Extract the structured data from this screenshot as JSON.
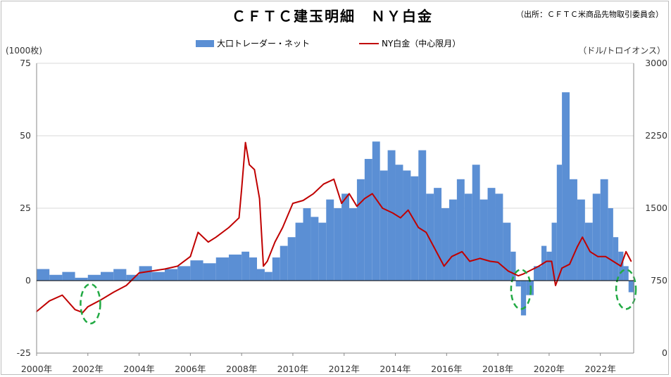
{
  "chart_data": {
    "type": "bar+line",
    "title": "ＣＦＴＣ建玉明細　ＮＹ白金",
    "source_note": "（出所：ＣＦＴＣ米商品先物取引委員会）",
    "left_axis_unit": "(1000枚)",
    "right_axis_unit": "（ドル/トロイオンス）",
    "legend_position": "top-center",
    "grid": true,
    "left_axis": {
      "ylim": [
        -25,
        75
      ],
      "ticks": [
        "75",
        "50",
        "25",
        "0",
        "-25"
      ]
    },
    "right_axis": {
      "ylim": [
        0,
        3000
      ],
      "ticks": [
        "3000",
        "2250",
        "1500",
        "750",
        "0"
      ]
    },
    "x_ticks": [
      "2000年",
      "2002年",
      "2004年",
      "2006年",
      "2008年",
      "2010年",
      "2012年",
      "2014年",
      "2016年",
      "2018年",
      "2020年",
      "2022年"
    ],
    "xlim": [
      2000,
      2023.3
    ],
    "series": [
      {
        "name": "大口トレーダー・ネット",
        "kind": "bar",
        "axis": "left",
        "color": "#5b8fd4",
        "x": [
          2000,
          2000.5,
          2001,
          2001.5,
          2002,
          2002.5,
          2003,
          2003.5,
          2004,
          2004.5,
          2005,
          2005.5,
          2006,
          2006.5,
          2007,
          2007.5,
          2008,
          2008.3,
          2008.6,
          2008.9,
          2009.2,
          2009.5,
          2009.8,
          2010.1,
          2010.4,
          2010.7,
          2011,
          2011.3,
          2011.6,
          2011.9,
          2012.2,
          2012.5,
          2012.8,
          2013.1,
          2013.4,
          2013.7,
          2014,
          2014.3,
          2014.6,
          2014.9,
          2015.2,
          2015.5,
          2015.8,
          2016.1,
          2016.4,
          2016.7,
          2017,
          2017.3,
          2017.6,
          2017.9,
          2018.2,
          2018.5,
          2018.7,
          2018.9,
          2019.1,
          2019.4,
          2019.7,
          2019.9,
          2020.1,
          2020.3,
          2020.5,
          2020.8,
          2021.1,
          2021.4,
          2021.7,
          2022,
          2022.3,
          2022.5,
          2022.7,
          2022.9,
          2023.1,
          2023.3
        ],
        "values": [
          4,
          2,
          3,
          1,
          2,
          3,
          4,
          2,
          5,
          3,
          4,
          5,
          7,
          6,
          8,
          9,
          10,
          8,
          4,
          3,
          8,
          12,
          15,
          20,
          25,
          22,
          20,
          28,
          25,
          30,
          25,
          35,
          42,
          48,
          38,
          45,
          40,
          38,
          36,
          45,
          30,
          32,
          25,
          28,
          35,
          30,
          40,
          28,
          32,
          30,
          20,
          10,
          -2,
          -12,
          -5,
          5,
          12,
          10,
          20,
          40,
          65,
          35,
          28,
          20,
          30,
          35,
          25,
          15,
          10,
          5,
          -4,
          -6
        ]
      },
      {
        "name": "NY白金（中心限月）",
        "kind": "line",
        "axis": "right",
        "color": "#c00000",
        "x": [
          2000,
          2000.5,
          2001,
          2001.5,
          2001.8,
          2002,
          2002.5,
          2003,
          2003.5,
          2004,
          2004.5,
          2005,
          2005.5,
          2006,
          2006.3,
          2006.7,
          2007,
          2007.5,
          2007.9,
          2008,
          2008.15,
          2008.3,
          2008.5,
          2008.7,
          2008.85,
          2009,
          2009.3,
          2009.6,
          2010,
          2010.4,
          2010.8,
          2011.2,
          2011.6,
          2011.9,
          2012.2,
          2012.5,
          2012.8,
          2013.1,
          2013.5,
          2013.9,
          2014.2,
          2014.5,
          2014.9,
          2015.2,
          2015.5,
          2015.9,
          2016.2,
          2016.6,
          2016.9,
          2017.3,
          2017.7,
          2018,
          2018.4,
          2018.8,
          2019,
          2019.3,
          2019.6,
          2019.9,
          2020.1,
          2020.25,
          2020.5,
          2020.8,
          2021.1,
          2021.3,
          2021.6,
          2021.9,
          2022.2,
          2022.5,
          2022.8,
          2023,
          2023.2
        ],
        "values": [
          430,
          540,
          600,
          450,
          420,
          480,
          550,
          630,
          700,
          830,
          850,
          870,
          900,
          1000,
          1250,
          1150,
          1200,
          1300,
          1400,
          1700,
          2180,
          1950,
          1900,
          1600,
          900,
          950,
          1150,
          1300,
          1550,
          1580,
          1650,
          1750,
          1800,
          1550,
          1650,
          1520,
          1600,
          1650,
          1500,
          1450,
          1400,
          1480,
          1300,
          1250,
          1100,
          900,
          1000,
          1050,
          950,
          980,
          950,
          940,
          850,
          800,
          820,
          860,
          900,
          950,
          950,
          700,
          880,
          920,
          1100,
          1200,
          1050,
          1000,
          1000,
          950,
          900,
          1050,
          950
        ]
      }
    ],
    "annotations": [
      {
        "type": "dashed-ellipse",
        "color": "#22aa44",
        "x_center": 2002.1,
        "y_center_left": -8
      },
      {
        "type": "dashed-ellipse",
        "color": "#22aa44",
        "x_center": 2018.9,
        "y_center_left": -3
      },
      {
        "type": "dashed-ellipse",
        "color": "#22aa44",
        "x_center": 2023.0,
        "y_center_left": -3
      }
    ]
  }
}
